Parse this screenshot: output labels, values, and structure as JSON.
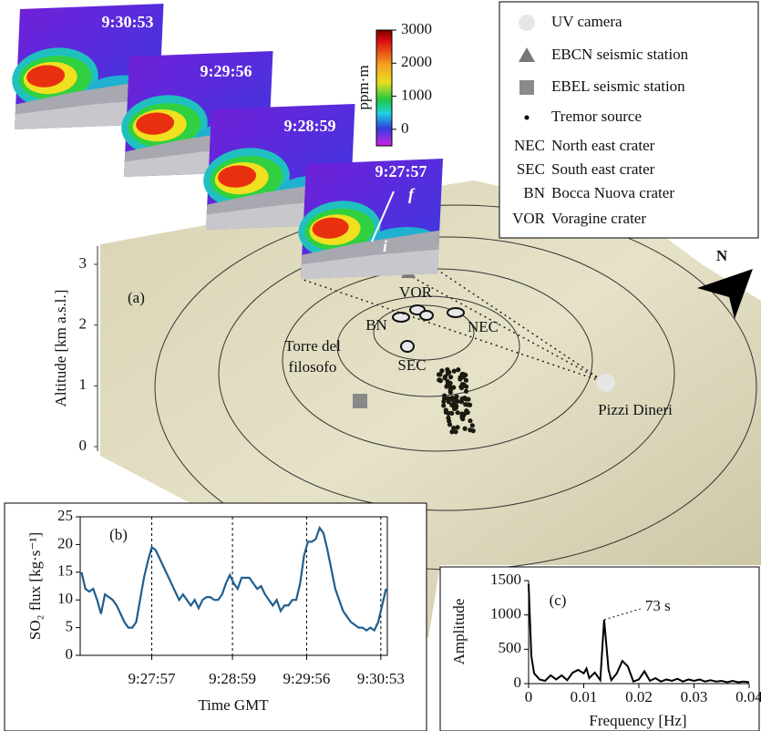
{
  "figure_images": [
    {
      "time": "9:30:53"
    },
    {
      "time": "9:29:56"
    },
    {
      "time": "9:28:59"
    },
    {
      "time": "9:27:57"
    }
  ],
  "plume_transect": {
    "start": "i",
    "end": "f"
  },
  "colorbar": {
    "label": "ppm·m",
    "lim": [
      -500,
      3000
    ],
    "ticks": [
      0,
      1000,
      2000,
      3000
    ]
  },
  "legend": [
    {
      "text": "UV camera"
    },
    {
      "text": "EBCN seismic station"
    },
    {
      "text": "EBEL seismic station"
    },
    {
      "text": "Tremor source"
    },
    {
      "key": "NEC",
      "text": "North east crater"
    },
    {
      "key": "SEC",
      "text": "South east crater"
    },
    {
      "key": "BN",
      "text": "Bocca Nuova crater"
    },
    {
      "key": "VOR",
      "text": "Voragine crater"
    }
  ],
  "map": {
    "panel_label": "(a)",
    "axis_label": "Altitude [km a.s.l.]",
    "altitude_lim": [
      0,
      3
    ],
    "altitude_ticks": [
      0,
      1,
      2,
      3
    ],
    "north": "N",
    "craters": [
      "VOR",
      "BN",
      "NEC",
      "SEC"
    ],
    "places": [
      {
        "lines": [
          "Torre del",
          "filosofo"
        ]
      },
      {
        "lines": [
          "Pizzi Dineri"
        ]
      }
    ]
  },
  "chart_data": [
    {
      "type": "line",
      "panel_label": "(b)",
      "ylabel": "SO₂ flux [kg·s⁻¹]",
      "xlabel": "Time GMT",
      "color": "#1f5f8f",
      "x": [
        34023,
        34026,
        34029,
        34032,
        34035,
        34038,
        34041,
        34044,
        34047,
        34050,
        34053,
        34056,
        34059,
        34062,
        34065,
        34068,
        34071,
        34074,
        34077,
        34080,
        34083,
        34086,
        34089,
        34092,
        34095,
        34098,
        34101,
        34104,
        34107,
        34110,
        34113,
        34116,
        34119,
        34122,
        34125,
        34128,
        34131,
        34134,
        34137,
        34140,
        34143,
        34146,
        34149,
        34152,
        34155,
        34158,
        34161,
        34164,
        34167,
        34170,
        34173,
        34176,
        34179,
        34182,
        34185,
        34188,
        34191,
        34194,
        34197,
        34200,
        34203,
        34206,
        34209,
        34212,
        34215,
        34218,
        34221,
        34224,
        34227,
        34230,
        34233,
        34236,
        34239,
        34242,
        34245,
        34248,
        34251,
        34254,
        34257
      ],
      "values": [
        15,
        12,
        11.5,
        12,
        10,
        7.5,
        11,
        10.5,
        10,
        9,
        7.5,
        6,
        5,
        5,
        6,
        10,
        14,
        17,
        19.5,
        19,
        17.5,
        16,
        14.5,
        13,
        11.5,
        10,
        11,
        10,
        9,
        10,
        8.5,
        10,
        10.5,
        10.5,
        10,
        10,
        11,
        13,
        14.5,
        13,
        12,
        14,
        14,
        14,
        13,
        12,
        12.5,
        11,
        10,
        9,
        10,
        8,
        9,
        9,
        10,
        10,
        13,
        18,
        20.5,
        20.5,
        21,
        23,
        22,
        19,
        15.5,
        12,
        10,
        8,
        7,
        6,
        5.5,
        5,
        5,
        4.5,
        5,
        4.5,
        6,
        9,
        12
      ],
      "xlim": [
        34022,
        34258
      ],
      "xticks": [
        {
          "value": 34077,
          "label": "9:27:57"
        },
        {
          "value": 34139,
          "label": "9:28:59"
        },
        {
          "value": 34196,
          "label": "9:29:56"
        },
        {
          "value": 34253,
          "label": "9:30:53"
        }
      ],
      "ylim": [
        0,
        25
      ],
      "yticks": [
        0,
        5,
        10,
        15,
        20,
        25
      ],
      "xgrid": true
    },
    {
      "type": "line",
      "panel_label": "(c)",
      "ylabel": "Amplitude",
      "xlabel": "Frequency  [Hz]",
      "color": "#000000",
      "x": [
        0,
        0.0005,
        0.001,
        0.002,
        0.003,
        0.004,
        0.005,
        0.006,
        0.007,
        0.008,
        0.009,
        0.01,
        0.0105,
        0.011,
        0.012,
        0.013,
        0.0137,
        0.0145,
        0.015,
        0.016,
        0.017,
        0.018,
        0.019,
        0.02,
        0.021,
        0.022,
        0.023,
        0.024,
        0.025,
        0.026,
        0.027,
        0.028,
        0.029,
        0.03,
        0.031,
        0.032,
        0.033,
        0.034,
        0.035,
        0.036,
        0.037,
        0.038,
        0.039,
        0.04
      ],
      "values": [
        1450,
        400,
        150,
        60,
        40,
        120,
        60,
        120,
        50,
        160,
        200,
        150,
        220,
        80,
        160,
        50,
        930,
        200,
        50,
        150,
        330,
        250,
        30,
        60,
        180,
        40,
        80,
        30,
        60,
        40,
        70,
        30,
        60,
        40,
        60,
        30,
        50,
        30,
        40,
        20,
        40,
        20,
        30,
        20
      ],
      "xlim": [
        0,
        0.04
      ],
      "xticks": [
        0,
        0.01,
        0.02,
        0.03,
        0.04
      ],
      "ylim": [
        0,
        1500
      ],
      "yticks": [
        0,
        500,
        1000,
        1500
      ],
      "annotation": "73 s"
    }
  ]
}
